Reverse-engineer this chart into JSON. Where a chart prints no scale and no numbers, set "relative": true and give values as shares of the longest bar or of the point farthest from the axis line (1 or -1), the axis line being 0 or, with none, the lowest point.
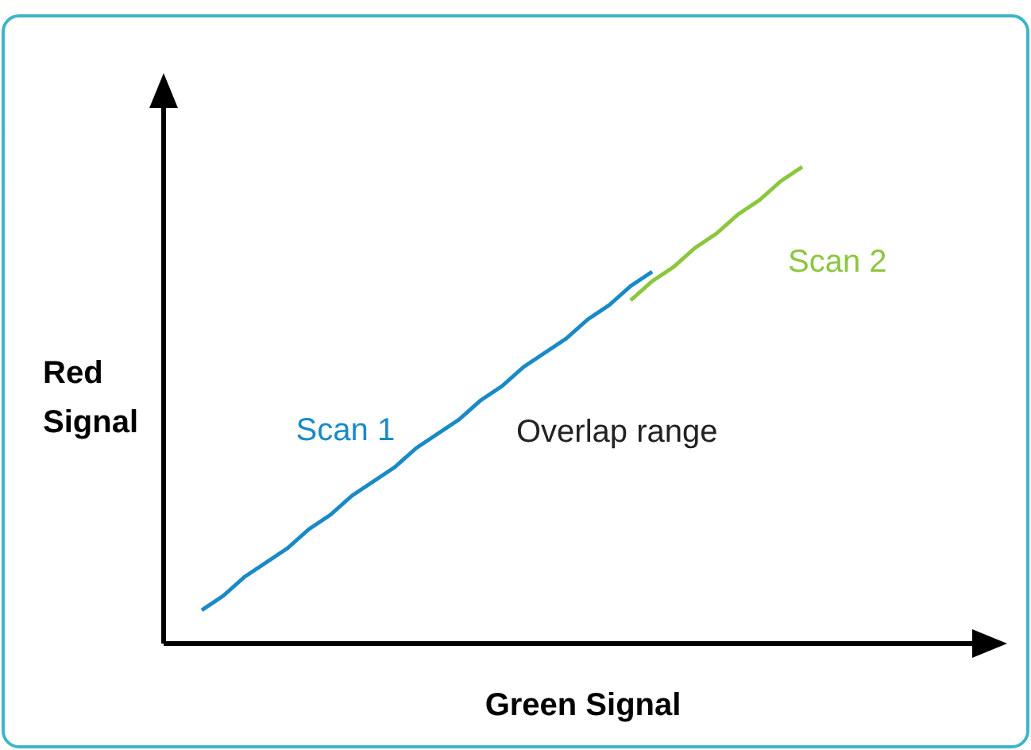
{
  "chart_data": {
    "type": "line",
    "relative": true,
    "xlabel": "Green Signal",
    "ylabel": "Red Signal",
    "legend": false,
    "marker": "none",
    "line_style": "solid",
    "annotations": [
      "Overlap range"
    ],
    "categories": [
      null,
      null,
      null,
      null,
      null,
      null,
      null,
      null,
      null,
      null,
      null,
      null,
      null,
      null,
      null,
      null,
      null,
      null,
      null,
      null,
      null,
      null,
      null,
      null,
      null,
      null,
      null,
      null,
      null
    ],
    "series": [
      {
        "name": "Scan 1",
        "color": "#1a8ac6",
        "values": [
          0.07,
          0.1,
          0.14,
          0.17,
          0.2,
          0.24,
          0.27,
          0.31,
          0.34,
          0.37,
          0.41,
          0.44,
          0.47,
          0.51,
          0.54,
          0.58,
          0.61,
          0.64,
          0.68,
          0.71,
          0.75,
          0.78,
          null,
          null,
          null,
          null,
          null,
          null,
          null
        ]
      },
      {
        "name": "Scan 2",
        "color": "#8cc63f",
        "values": [
          null,
          null,
          null,
          null,
          null,
          null,
          null,
          null,
          null,
          null,
          null,
          null,
          null,
          null,
          null,
          null,
          null,
          null,
          null,
          null,
          0.72,
          0.76,
          0.79,
          0.83,
          0.86,
          0.9,
          0.93,
          0.97,
          1
        ]
      }
    ]
  }
}
